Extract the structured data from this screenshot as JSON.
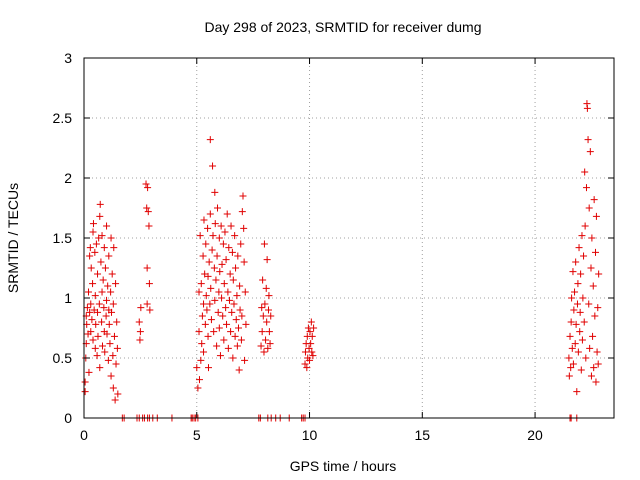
{
  "chart_data": {
    "type": "scatter",
    "title": "Day 298 of 2023, SRMTID for receiver dumg",
    "xlabel": "GPS time / hours",
    "ylabel": "SRMTID / TECUs",
    "xlim": [
      0,
      23.5
    ],
    "ylim": [
      0,
      3
    ],
    "x_ticks": [
      0,
      5,
      10,
      15,
      20
    ],
    "y_ticks": [
      0,
      0.5,
      1,
      1.5,
      2,
      2.5,
      3
    ],
    "x_tick_labels": [
      "0",
      "5",
      "10",
      "15",
      "20"
    ],
    "y_tick_labels": [
      "0",
      "0.5",
      "1",
      "1.5",
      "2",
      "2.5",
      "3"
    ],
    "grid": true,
    "marker": "+",
    "color": "#e00000",
    "series": [
      {
        "points": [
          [
            0.05,
            0.3
          ],
          [
            0.05,
            0.22
          ],
          [
            0.08,
            0.5
          ],
          [
            0.1,
            0.62
          ],
          [
            0.1,
            0.85
          ],
          [
            0.12,
            0.78
          ],
          [
            0.15,
            0.92
          ],
          [
            0.18,
            0.7
          ],
          [
            0.2,
            1.05
          ],
          [
            0.22,
            0.38
          ],
          [
            0.25,
            1.35
          ],
          [
            0.25,
            0.88
          ],
          [
            0.28,
            1.42
          ],
          [
            0.3,
            0.95
          ],
          [
            0.3,
            0.72
          ],
          [
            0.32,
            1.25
          ],
          [
            0.35,
            0.82
          ],
          [
            0.38,
            1.12
          ],
          [
            0.4,
            1.55
          ],
          [
            0.4,
            0.65
          ],
          [
            0.42,
            1.62
          ],
          [
            0.45,
            0.9
          ],
          [
            0.48,
            1.38
          ],
          [
            0.5,
            0.58
          ],
          [
            0.5,
            1.02
          ],
          [
            0.52,
            0.78
          ],
          [
            0.55,
            1.45
          ],
          [
            0.58,
            0.52
          ],
          [
            0.6,
            1.2
          ],
          [
            0.6,
            0.88
          ],
          [
            0.62,
            0.68
          ],
          [
            0.65,
            1.5
          ],
          [
            0.68,
            0.95
          ],
          [
            0.7,
            1.68
          ],
          [
            0.7,
            0.42
          ],
          [
            0.72,
            1.78
          ],
          [
            0.75,
            1.3
          ],
          [
            0.78,
            0.8
          ],
          [
            0.8,
            1.52
          ],
          [
            0.8,
            1.05
          ],
          [
            0.82,
            0.6
          ],
          [
            0.85,
            1.15
          ],
          [
            0.88,
            0.92
          ],
          [
            0.9,
            1.42
          ],
          [
            0.9,
            0.72
          ],
          [
            0.92,
            0.55
          ],
          [
            0.95,
            1.25
          ],
          [
            0.98,
            0.85
          ],
          [
            1.0,
            0.98
          ],
          [
            1.0,
            1.6
          ],
          [
            1.02,
            0.7
          ],
          [
            1.05,
            1.1
          ],
          [
            1.08,
            0.48
          ],
          [
            1.1,
            0.9
          ],
          [
            1.1,
            1.35
          ],
          [
            1.12,
            0.78
          ],
          [
            1.15,
            0.62
          ],
          [
            1.18,
            1.05
          ],
          [
            1.2,
            0.35
          ],
          [
            1.2,
            1.5
          ],
          [
            1.22,
            0.88
          ],
          [
            1.25,
            1.2
          ],
          [
            1.28,
            0.52
          ],
          [
            1.3,
            0.25
          ],
          [
            1.3,
            0.95
          ],
          [
            1.32,
            1.42
          ],
          [
            1.35,
            0.68
          ],
          [
            1.38,
            0.15
          ],
          [
            1.4,
            1.12
          ],
          [
            1.42,
            0.45
          ],
          [
            1.45,
            0.8
          ],
          [
            1.48,
            0.58
          ],
          [
            1.5,
            0.2
          ],
          [
            2.45,
            0.8
          ],
          [
            2.48,
            0.65
          ],
          [
            2.5,
            0.72
          ],
          [
            2.52,
            0.92
          ],
          [
            2.75,
            1.95
          ],
          [
            2.78,
            1.75
          ],
          [
            2.8,
            1.25
          ],
          [
            2.8,
            0.95
          ],
          [
            2.82,
            1.92
          ],
          [
            2.85,
            1.72
          ],
          [
            2.88,
            1.6
          ],
          [
            2.9,
            1.12
          ],
          [
            2.92,
            0.9
          ],
          [
            5.0,
            0.42
          ],
          [
            5.05,
            0.25
          ],
          [
            5.1,
            0.72
          ],
          [
            5.1,
            1.05
          ],
          [
            5.12,
            0.32
          ],
          [
            5.15,
            1.52
          ],
          [
            5.18,
            0.48
          ],
          [
            5.2,
            1.12
          ],
          [
            5.22,
            0.62
          ],
          [
            5.25,
            0.85
          ],
          [
            5.28,
            1.35
          ],
          [
            5.3,
            0.95
          ],
          [
            5.3,
            0.55
          ],
          [
            5.32,
            1.65
          ],
          [
            5.35,
            1.2
          ],
          [
            5.38,
            0.78
          ],
          [
            5.4,
            1.45
          ],
          [
            5.42,
            1.02
          ],
          [
            5.45,
            0.9
          ],
          [
            5.48,
            1.58
          ],
          [
            5.5,
            1.18
          ],
          [
            5.5,
            0.68
          ],
          [
            5.52,
            0.42
          ],
          [
            5.55,
            1.3
          ],
          [
            5.58,
            0.95
          ],
          [
            5.6,
            1.7
          ],
          [
            5.6,
            2.32
          ],
          [
            5.62,
            1.08
          ],
          [
            5.65,
            0.82
          ],
          [
            5.68,
            1.4
          ],
          [
            5.7,
            2.1
          ],
          [
            5.72,
            1.52
          ],
          [
            5.75,
            0.72
          ],
          [
            5.78,
            1.25
          ],
          [
            5.8,
            1.88
          ],
          [
            5.8,
            0.98
          ],
          [
            5.82,
            1.62
          ],
          [
            5.85,
            1.15
          ],
          [
            5.88,
            0.6
          ],
          [
            5.9,
            1.35
          ],
          [
            5.92,
            1.75
          ],
          [
            5.95,
            0.88
          ],
          [
            5.98,
            1.05
          ],
          [
            6.0,
            1.5
          ],
          [
            6.0,
            0.75
          ],
          [
            6.02,
            1.22
          ],
          [
            6.05,
            0.52
          ],
          [
            6.08,
            1.6
          ],
          [
            6.1,
            1.0
          ],
          [
            6.12,
            1.28
          ],
          [
            6.15,
            0.85
          ],
          [
            6.18,
            1.45
          ],
          [
            6.2,
            0.65
          ],
          [
            6.22,
            1.12
          ],
          [
            6.25,
            1.55
          ],
          [
            6.28,
            0.92
          ],
          [
            6.3,
            1.32
          ],
          [
            6.32,
            0.78
          ],
          [
            6.35,
            1.7
          ],
          [
            6.38,
            1.05
          ],
          [
            6.4,
            0.58
          ],
          [
            6.42,
            1.42
          ],
          [
            6.45,
            0.98
          ],
          [
            6.48,
            1.2
          ],
          [
            6.5,
            0.72
          ],
          [
            6.52,
            1.6
          ],
          [
            6.55,
            0.88
          ],
          [
            6.58,
            1.38
          ],
          [
            6.6,
            0.5
          ],
          [
            6.62,
            1.15
          ],
          [
            6.65,
            0.95
          ],
          [
            6.68,
            1.52
          ],
          [
            6.7,
            0.68
          ],
          [
            6.72,
            1.25
          ],
          [
            6.75,
            0.82
          ],
          [
            6.78,
            1.02
          ],
          [
            6.8,
            0.6
          ],
          [
            6.82,
            1.35
          ],
          [
            6.85,
            0.75
          ],
          [
            6.88,
            0.4
          ],
          [
            6.9,
            1.1
          ],
          [
            6.92,
            0.9
          ],
          [
            6.95,
            1.45
          ],
          [
            6.98,
            0.65
          ],
          [
            7.0,
            0.85
          ],
          [
            7.02,
            1.72
          ],
          [
            7.05,
            1.85
          ],
          [
            7.08,
            1.58
          ],
          [
            7.1,
            1.3
          ],
          [
            7.12,
            0.48
          ],
          [
            7.15,
            1.05
          ],
          [
            7.18,
            0.78
          ],
          [
            7.85,
            0.6
          ],
          [
            7.88,
            0.92
          ],
          [
            7.9,
            0.72
          ],
          [
            7.92,
            1.15
          ],
          [
            7.95,
            0.85
          ],
          [
            7.98,
            0.55
          ],
          [
            8.0,
            1.45
          ],
          [
            8.02,
            0.95
          ],
          [
            8.05,
            0.65
          ],
          [
            8.08,
            1.08
          ],
          [
            8.1,
            0.8
          ],
          [
            8.12,
            1.32
          ],
          [
            8.15,
            0.58
          ],
          [
            8.18,
            0.9
          ],
          [
            8.2,
            1.02
          ],
          [
            8.22,
            0.72
          ],
          [
            8.25,
            0.62
          ],
          [
            8.28,
            0.85
          ],
          [
            9.8,
            0.45
          ],
          [
            9.82,
            0.55
          ],
          [
            9.85,
            0.62
          ],
          [
            9.88,
            0.42
          ],
          [
            9.9,
            0.68
          ],
          [
            9.92,
            0.5
          ],
          [
            9.95,
            0.75
          ],
          [
            9.98,
            0.58
          ],
          [
            10.0,
            0.48
          ],
          [
            10.02,
            0.72
          ],
          [
            10.05,
            0.62
          ],
          [
            10.08,
            0.8
          ],
          [
            10.1,
            0.55
          ],
          [
            10.12,
            0.68
          ],
          [
            10.15,
            0.52
          ],
          [
            10.18,
            0.75
          ],
          [
            21.5,
            0.5
          ],
          [
            21.52,
            0.35
          ],
          [
            21.55,
            0.68
          ],
          [
            21.58,
            0.42
          ],
          [
            21.6,
            0.8
          ],
          [
            21.62,
            1.0
          ],
          [
            21.65,
            0.58
          ],
          [
            21.68,
            1.22
          ],
          [
            21.7,
            0.45
          ],
          [
            21.72,
            0.9
          ],
          [
            21.75,
            1.05
          ],
          [
            21.78,
            0.62
          ],
          [
            21.8,
            1.3
          ],
          [
            21.82,
            0.78
          ],
          [
            21.85,
            0.22
          ],
          [
            21.88,
            0.95
          ],
          [
            21.9,
            1.12
          ],
          [
            21.92,
            0.55
          ],
          [
            21.95,
            1.42
          ],
          [
            21.98,
            0.72
          ],
          [
            22.0,
            0.88
          ],
          [
            22.02,
            1.2
          ],
          [
            22.05,
            0.4
          ],
          [
            22.08,
            1.52
          ],
          [
            22.1,
            0.65
          ],
          [
            22.12,
            1.0
          ],
          [
            22.15,
            1.35
          ],
          [
            22.18,
            0.8
          ],
          [
            22.2,
            2.05
          ],
          [
            22.22,
            1.6
          ],
          [
            22.25,
            0.5
          ],
          [
            22.28,
            1.92
          ],
          [
            22.3,
            2.62
          ],
          [
            22.32,
            2.58
          ],
          [
            22.35,
            2.32
          ],
          [
            22.38,
            0.95
          ],
          [
            22.4,
            1.75
          ],
          [
            22.42,
            0.58
          ],
          [
            22.45,
            2.22
          ],
          [
            22.48,
            1.25
          ],
          [
            22.5,
            0.35
          ],
          [
            22.52,
            1.5
          ],
          [
            22.55,
            0.68
          ],
          [
            22.58,
            1.1
          ],
          [
            22.6,
            0.42
          ],
          [
            22.62,
            1.82
          ],
          [
            22.65,
            0.85
          ],
          [
            22.68,
            1.38
          ],
          [
            22.7,
            0.3
          ],
          [
            22.72,
            1.68
          ],
          [
            22.75,
            0.55
          ],
          [
            22.78,
            0.92
          ],
          [
            22.8,
            0.45
          ],
          [
            22.82,
            1.2
          ]
        ]
      },
      {
        "points": [
          [
            1.7,
            0
          ],
          [
            1.78,
            0
          ],
          [
            2.35,
            0
          ],
          [
            2.45,
            0
          ],
          [
            2.6,
            0
          ],
          [
            2.68,
            0
          ],
          [
            2.82,
            0
          ],
          [
            2.9,
            0
          ],
          [
            3.05,
            0
          ],
          [
            3.25,
            0
          ],
          [
            3.9,
            0
          ],
          [
            4.75,
            0
          ],
          [
            4.8,
            0
          ],
          [
            4.88,
            0
          ],
          [
            4.95,
            0
          ],
          [
            5.05,
            0
          ],
          [
            7.75,
            0
          ],
          [
            7.82,
            0
          ],
          [
            8.15,
            0
          ],
          [
            8.3,
            0
          ],
          [
            8.5,
            0
          ],
          [
            8.7,
            0
          ],
          [
            9.1,
            0
          ],
          [
            9.65,
            0
          ],
          [
            9.72,
            0
          ],
          [
            9.8,
            0
          ],
          [
            21.55,
            0
          ],
          [
            21.6,
            0
          ],
          [
            21.85,
            0
          ]
        ]
      }
    ]
  }
}
